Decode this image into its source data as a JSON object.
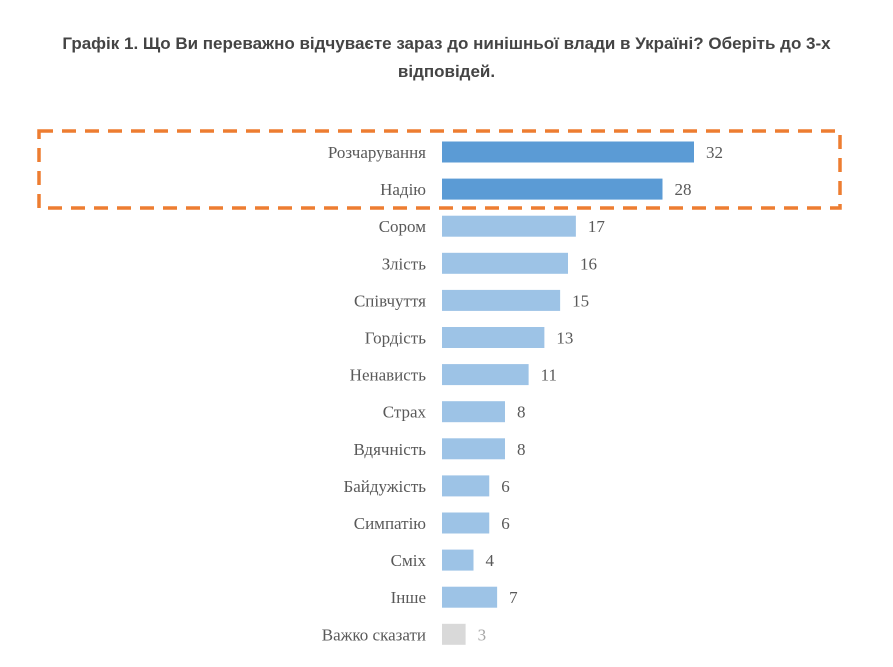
{
  "chart_data": {
    "type": "bar",
    "orientation": "horizontal",
    "title": "Графік 1. Що Ви переважно відчуваєте зараз до нинішньої влади в Україні? Оберіть до 3-х відповідей.",
    "categories": [
      "Розчарування",
      "Надію",
      "Сором",
      "Злість",
      "Співчуття",
      "Гордість",
      "Ненависть",
      "Страх",
      "Вдячність",
      "Байдужість",
      "Симпатію",
      "Сміх",
      "Інше",
      "Важко сказати"
    ],
    "values": [
      32,
      28,
      17,
      16,
      15,
      13,
      11,
      8,
      8,
      6,
      6,
      4,
      7,
      3
    ],
    "bar_colors": [
      "#5b9bd5",
      "#5b9bd5",
      "#9dc3e6",
      "#9dc3e6",
      "#9dc3e6",
      "#9dc3e6",
      "#9dc3e6",
      "#9dc3e6",
      "#9dc3e6",
      "#9dc3e6",
      "#9dc3e6",
      "#9dc3e6",
      "#9dc3e6",
      "#d9d9d9"
    ],
    "highlight": {
      "categories": [
        "Розчарування",
        "Надію"
      ],
      "color": "#ed7d31",
      "style": "dashed box"
    },
    "xlabel": "",
    "ylabel": "",
    "xlim": [
      0,
      32
    ],
    "grid": false,
    "legend": "none",
    "data_labels": true
  }
}
